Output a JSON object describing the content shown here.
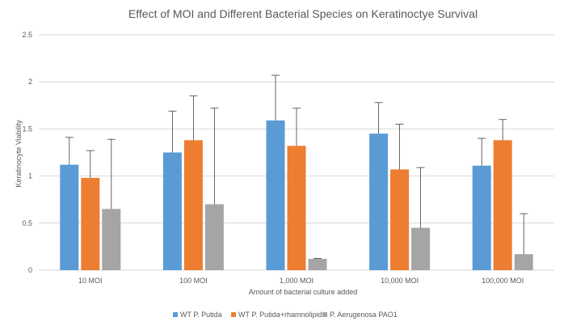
{
  "chart_data": {
    "type": "bar",
    "title": "Effect of MOI and Different Bacterial Species  on Keratinoctye Survival",
    "xlabel": "Amount of bacterial culture  added",
    "ylabel": "Keratinocyte Viability",
    "categories": [
      "10 MOI",
      "100 MOI",
      "1,000 MOI",
      "10,000 MOI",
      "100,000 MOI"
    ],
    "ylim": [
      0,
      2.5
    ],
    "yticks": [
      0,
      0.5,
      1,
      1.5,
      2,
      2.5
    ],
    "ytick_labels": [
      "0",
      "0.5",
      "1",
      "1.5",
      "2",
      "2.5"
    ],
    "grid": true,
    "legend_position": "bottom",
    "series": [
      {
        "name": "WT P. Putida",
        "color": "#5B9BD5",
        "values": [
          1.12,
          1.25,
          1.59,
          1.45,
          1.11
        ],
        "errors": [
          0.29,
          0.44,
          0.48,
          0.33,
          0.29
        ]
      },
      {
        "name": "WT P. Putida+rhamnolipid",
        "color": "#ED7D31",
        "values": [
          0.98,
          1.38,
          1.32,
          1.07,
          1.38
        ],
        "errors": [
          0.29,
          0.47,
          0.4,
          0.48,
          0.22
        ]
      },
      {
        "name": "P. Aerugenosa PAO1",
        "color": "#A5A5A5",
        "values": [
          0.65,
          0.7,
          0.12,
          0.45,
          0.17
        ],
        "errors": [
          0.74,
          1.02,
          0.005,
          0.64,
          0.43
        ]
      }
    ]
  }
}
